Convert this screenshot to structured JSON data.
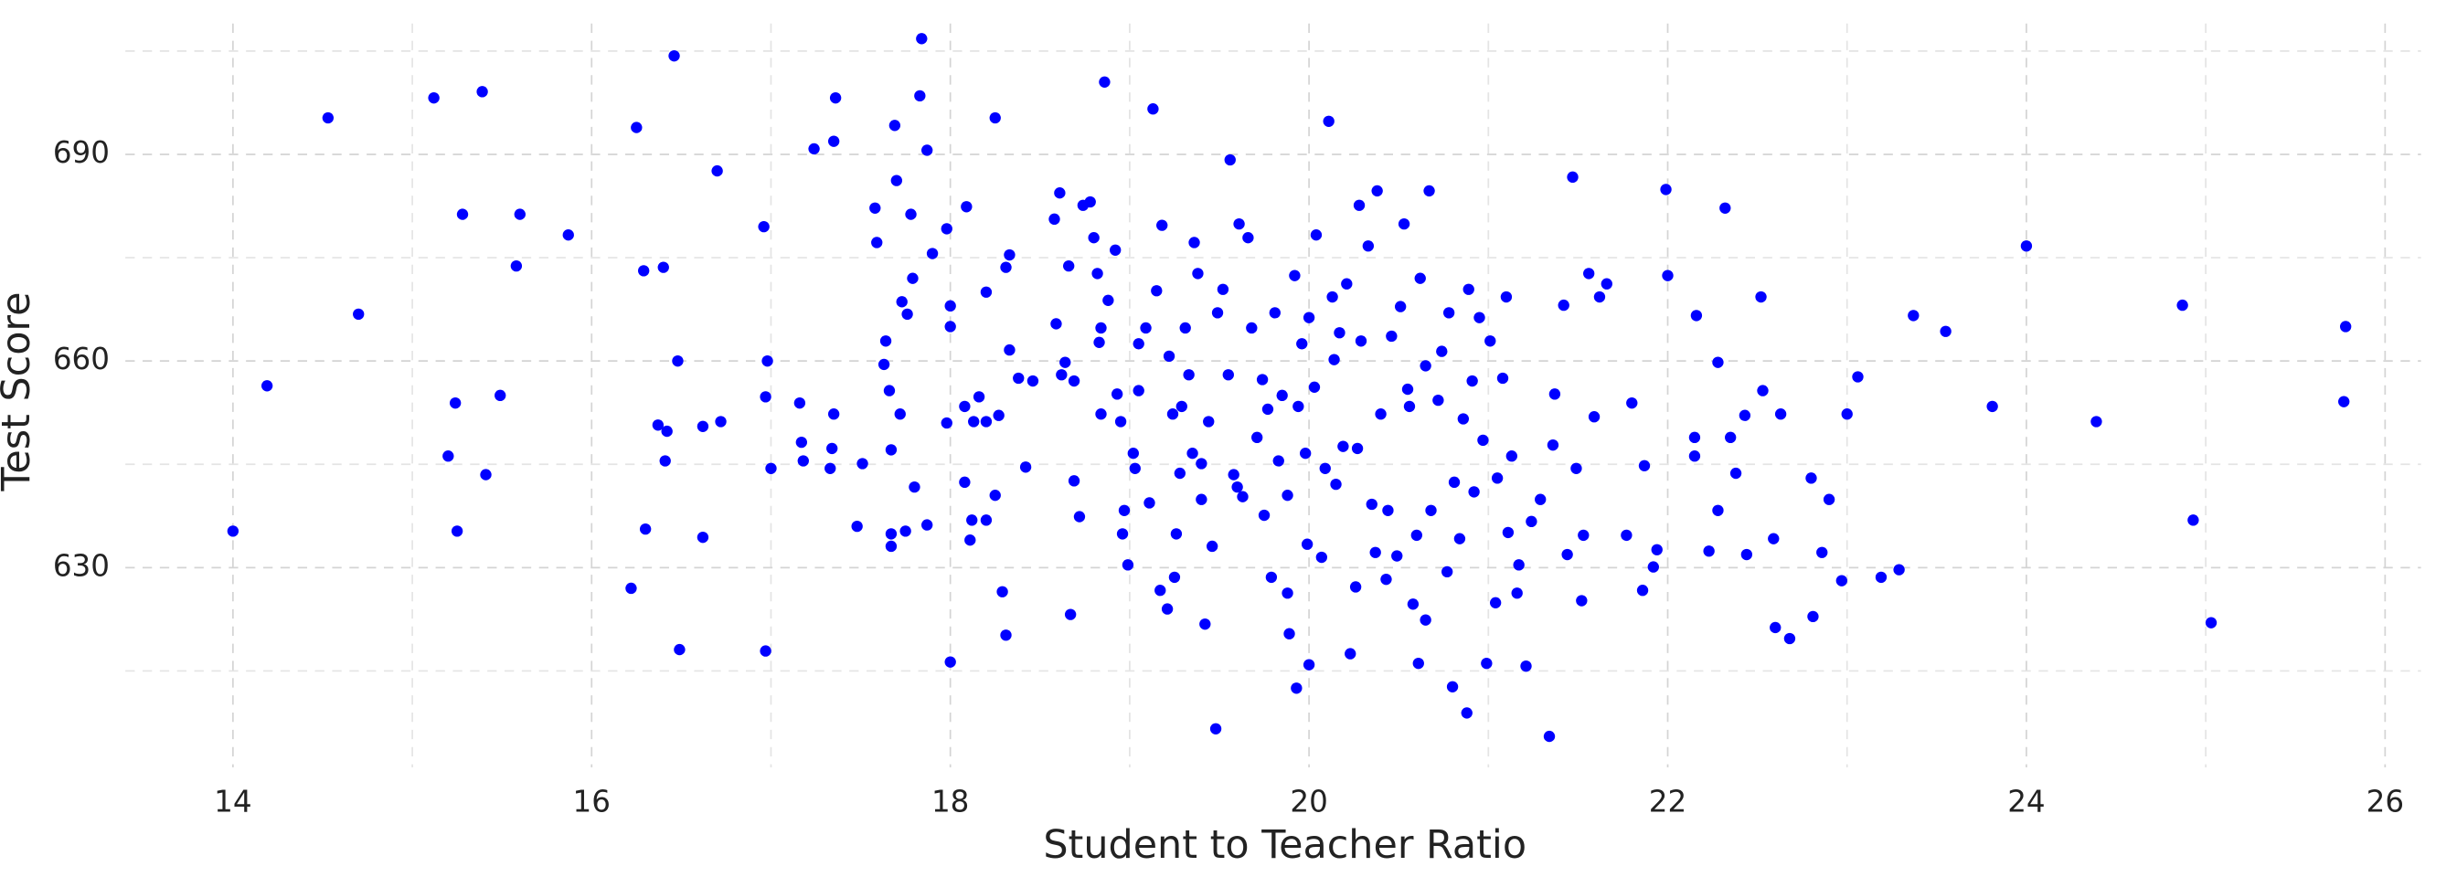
{
  "chart_data": {
    "type": "scatter",
    "xlabel": "Student to Teacher Ratio",
    "ylabel": "Test Score",
    "color": "#0000ff",
    "grid": true,
    "xlim": [
      13.4,
      26.2
    ],
    "ylim": [
      601,
      709
    ],
    "xticks": [
      14,
      16,
      18,
      20,
      22,
      24,
      26
    ],
    "yticks": [
      630,
      660,
      690
    ],
    "xminor": [
      15,
      17,
      19,
      21,
      23,
      25
    ],
    "yminor": [
      615,
      645,
      675,
      705
    ],
    "x": [
      14.0,
      14.19,
      14.53,
      14.7,
      15.12,
      15.39,
      15.28,
      15.24,
      15.2,
      15.25,
      15.41,
      15.49,
      15.6,
      15.58,
      15.87,
      16.25,
      16.29,
      16.4,
      16.46,
      16.48,
      16.37,
      16.41,
      16.42,
      16.3,
      16.22,
      16.49,
      16.62,
      16.62,
      16.72,
      16.7,
      16.96,
      16.98,
      16.97,
      17.0,
      16.97,
      17.16,
      17.17,
      17.18,
      17.24,
      17.35,
      17.36,
      17.35,
      17.34,
      17.33,
      17.48,
      17.51,
      17.58,
      17.59,
      17.63,
      17.64,
      17.66,
      17.67,
      17.67,
      17.67,
      17.75,
      17.72,
      17.73,
      17.69,
      17.7,
      17.84,
      17.83,
      17.87,
      17.76,
      17.79,
      17.8,
      17.78,
      17.87,
      17.9,
      17.98,
      17.98,
      18.0,
      18.0,
      18.0,
      18.09,
      18.08,
      18.08,
      18.11,
      18.12,
      18.13,
      18.16,
      18.2,
      18.25,
      18.2,
      18.25,
      18.27,
      18.29,
      18.31,
      18.31,
      18.33,
      18.33,
      18.38,
      18.42,
      18.46,
      18.2,
      18.58,
      18.59,
      18.61,
      18.62,
      18.64,
      18.66,
      18.67,
      18.69,
      18.69,
      18.72,
      18.74,
      18.78,
      18.8,
      18.82,
      18.84,
      18.84,
      18.83,
      18.86,
      18.88,
      18.92,
      18.93,
      18.95,
      18.96,
      18.97,
      18.99,
      19.02,
      19.03,
      19.05,
      19.05,
      19.09,
      19.11,
      19.13,
      19.15,
      19.17,
      19.18,
      19.21,
      19.22,
      19.24,
      19.25,
      19.26,
      19.28,
      19.29,
      19.31,
      19.33,
      19.35,
      19.36,
      19.38,
      19.4,
      19.4,
      19.42,
      19.44,
      19.46,
      19.48,
      19.49,
      19.52,
      19.55,
      19.56,
      19.58,
      19.6,
      19.61,
      19.63,
      19.66,
      19.68,
      19.71,
      19.74,
      19.75,
      19.77,
      19.79,
      19.81,
      19.83,
      19.85,
      19.88,
      19.88,
      19.89,
      19.92,
      19.93,
      19.94,
      19.96,
      19.98,
      19.99,
      20.0,
      20.0,
      20.03,
      20.04,
      20.07,
      20.09,
      20.11,
      20.13,
      20.14,
      20.15,
      20.17,
      20.19,
      20.21,
      20.23,
      20.26,
      20.27,
      20.28,
      20.29,
      20.33,
      20.35,
      20.37,
      20.38,
      20.4,
      20.43,
      20.44,
      20.46,
      20.49,
      20.51,
      20.53,
      20.55,
      20.56,
      20.58,
      20.6,
      20.61,
      20.62,
      20.65,
      20.65,
      20.67,
      20.68,
      20.72,
      20.74,
      20.77,
      20.78,
      20.8,
      20.81,
      20.84,
      20.86,
      20.88,
      20.89,
      20.91,
      20.92,
      20.95,
      20.97,
      20.99,
      21.01,
      21.04,
      21.05,
      21.08,
      21.1,
      21.11,
      21.13,
      21.16,
      21.17,
      21.21,
      21.24,
      21.29,
      21.34,
      21.36,
      21.37,
      21.42,
      21.44,
      21.47,
      21.49,
      21.52,
      21.53,
      21.56,
      21.59,
      21.62,
      21.66,
      21.8,
      21.77,
      21.86,
      21.87,
      21.92,
      21.94,
      21.99,
      22.0,
      22.15,
      22.15,
      22.16,
      22.23,
      22.28,
      22.28,
      22.32,
      22.35,
      22.38,
      22.43,
      22.44,
      22.52,
      22.53,
      22.6,
      22.59,
      22.63,
      22.68,
      22.8,
      22.81,
      22.86,
      22.9,
      22.97,
      23.0,
      23.06,
      23.19,
      23.29,
      23.37,
      23.55,
      23.81,
      24.0,
      24.39,
      24.87,
      24.93,
      25.03,
      25.77,
      25.78
    ],
    "values": [
      635.3,
      656.4,
      695.3,
      666.8,
      698.2,
      699.1,
      681.3,
      653.9,
      646.2,
      635.3,
      643.5,
      655.0,
      681.3,
      673.8,
      678.3,
      693.9,
      673.1,
      673.6,
      704.3,
      660.0,
      650.7,
      645.5,
      649.8,
      635.6,
      627.0,
      618.1,
      634.4,
      650.5,
      651.2,
      687.6,
      679.5,
      660.0,
      654.8,
      644.4,
      617.9,
      653.9,
      648.2,
      645.5,
      690.8,
      691.9,
      698.2,
      652.3,
      647.3,
      644.4,
      636.0,
      645.1,
      682.2,
      677.2,
      659.5,
      662.9,
      655.7,
      647.1,
      634.9,
      633.1,
      635.3,
      652.3,
      668.6,
      694.2,
      686.2,
      706.8,
      698.5,
      690.6,
      666.8,
      672.0,
      641.7,
      681.3,
      636.2,
      675.6,
      679.2,
      651.0,
      616.3,
      665.0,
      668.0,
      682.4,
      653.4,
      642.4,
      634.0,
      636.9,
      651.2,
      654.8,
      651.2,
      695.3,
      636.9,
      640.5,
      652.1,
      626.5,
      620.2,
      673.6,
      675.4,
      661.6,
      657.5,
      644.6,
      657.1,
      670.0,
      680.6,
      665.4,
      684.4,
      658.0,
      659.8,
      673.8,
      623.2,
      642.6,
      657.1,
      637.4,
      682.6,
      683.1,
      677.9,
      672.7,
      652.3,
      664.8,
      662.7,
      700.5,
      668.8,
      676.1,
      655.2,
      651.2,
      634.9,
      638.3,
      630.4,
      646.6,
      644.4,
      655.7,
      662.5,
      664.8,
      639.4,
      696.6,
      670.2,
      626.7,
      679.7,
      624.0,
      660.7,
      652.3,
      628.6,
      634.9,
      643.7,
      653.4,
      664.8,
      658.0,
      646.6,
      677.2,
      672.7,
      645.1,
      639.9,
      621.8,
      651.2,
      633.1,
      606.6,
      667.0,
      670.4,
      658.0,
      689.2,
      643.5,
      641.7,
      679.9,
      640.3,
      677.9,
      664.8,
      648.9,
      657.3,
      637.6,
      653.0,
      628.6,
      667.0,
      645.5,
      655.0,
      640.5,
      626.3,
      620.4,
      672.4,
      612.5,
      653.4,
      662.5,
      646.6,
      633.4,
      615.9,
      666.3,
      656.2,
      678.3,
      631.5,
      644.4,
      694.8,
      669.3,
      660.2,
      642.1,
      664.1,
      647.6,
      671.2,
      617.5,
      627.2,
      647.3,
      682.6,
      662.9,
      676.7,
      639.2,
      632.2,
      684.7,
      652.3,
      628.3,
      638.3,
      663.6,
      631.7,
      667.9,
      679.9,
      655.9,
      653.4,
      624.7,
      634.7,
      616.1,
      672.0,
      659.3,
      622.4,
      684.7,
      638.3,
      654.3,
      661.4,
      629.4,
      667.0,
      612.7,
      642.4,
      634.2,
      651.6,
      608.9,
      670.4,
      657.1,
      641.0,
      666.3,
      648.5,
      616.1,
      662.9,
      624.9,
      643.0,
      657.5,
      669.3,
      635.1,
      646.2,
      626.3,
      630.4,
      615.7,
      636.7,
      639.9,
      605.5,
      647.8,
      655.2,
      668.1,
      631.9,
      686.7,
      644.4,
      625.2,
      634.7,
      672.7,
      651.9,
      669.3,
      671.2,
      653.9,
      634.7,
      626.7,
      644.8,
      630.1,
      632.6,
      684.9,
      672.4,
      646.2,
      648.9,
      666.6,
      632.4,
      659.8,
      638.3,
      682.2,
      648.9,
      643.7,
      652.1,
      631.9,
      669.3,
      655.7,
      621.3,
      634.2,
      652.3,
      619.7,
      643.0,
      622.9,
      632.2,
      639.9,
      628.1,
      652.3,
      657.7,
      628.6,
      629.7,
      666.6,
      664.3,
      653.4,
      676.7,
      651.2,
      668.1,
      636.9,
      622.0,
      654.1,
      665.0
    ]
  }
}
